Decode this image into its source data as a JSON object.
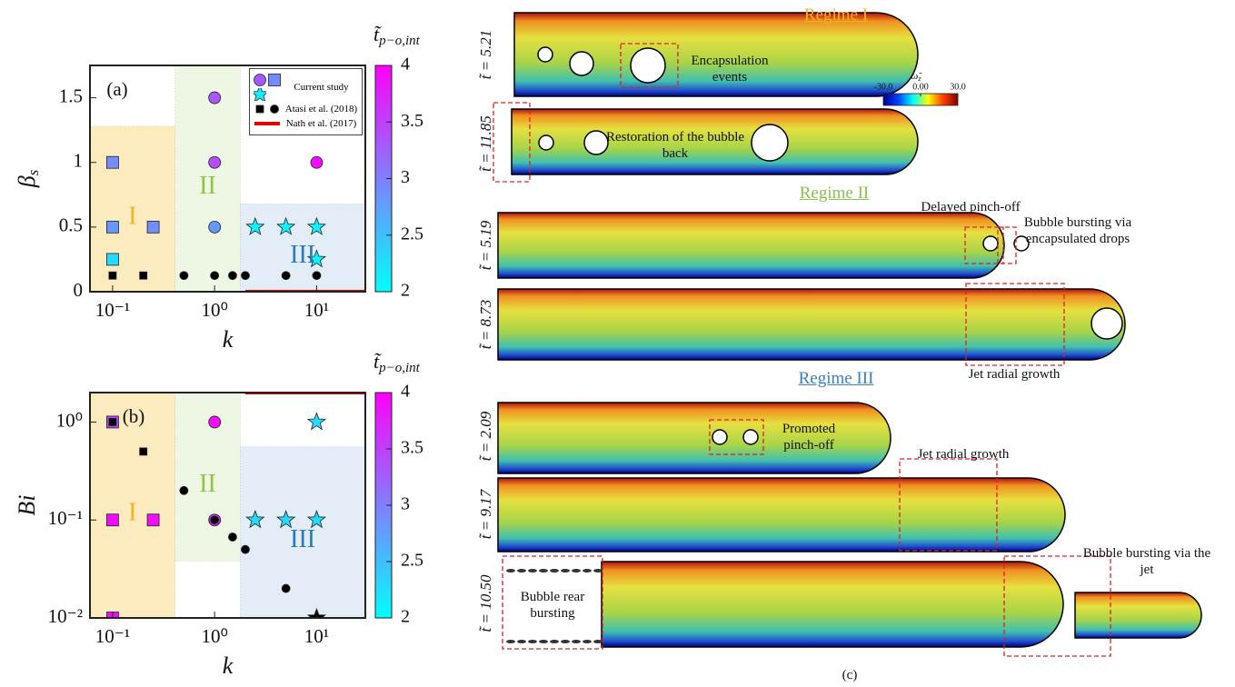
{
  "chart_data": [
    {
      "type": "scatter",
      "panel_label": "(a)",
      "xlabel": "k",
      "ylabel": "β",
      "ylabel_sub": "s",
      "xscale": "log",
      "yscale": "linear",
      "xlim": [
        0.06,
        30
      ],
      "ylim": [
        0,
        1.75
      ],
      "xticks": [
        {
          "value": 0.1,
          "label": "10⁻¹"
        },
        {
          "value": 1,
          "label": "10⁰"
        },
        {
          "value": 10,
          "label": "10¹"
        }
      ],
      "yticks": [
        0,
        0.5,
        1,
        1.5
      ],
      "regions": [
        {
          "label": "I",
          "xlim": [
            0.06,
            0.41
          ],
          "ylim": [
            0,
            1.28
          ],
          "color": "#fdebc0",
          "label_color": "#f2b320"
        },
        {
          "label": "II",
          "xlim": [
            0.41,
            1.78
          ],
          "ylim": [
            0,
            1.75
          ],
          "color": "#eef6e4",
          "label_color": "#8cc63f"
        },
        {
          "label": "III",
          "xlim": [
            1.78,
            30
          ],
          "ylim": [
            0,
            0.68
          ],
          "color": "#e3edf8",
          "label_color": "#2a7ab8"
        }
      ],
      "colorbar": {
        "symbol": "t̃",
        "subscript": "p−o,int",
        "lim": [
          2,
          4
        ],
        "ticks": [
          2,
          2.5,
          3,
          3.5,
          4
        ],
        "colors": [
          "#00ffff",
          "#ff00ff"
        ]
      },
      "legend": "upper right",
      "series": [
        {
          "name": "Current study",
          "marker": "circle",
          "x": [
            1,
            1,
            1,
            10
          ],
          "values": [
            1.5,
            1,
            0.5,
            1
          ],
          "t": [
            3.3,
            3.4,
            2.8,
            3.9
          ]
        },
        {
          "marker": "square",
          "x": [
            0.1,
            0.1,
            0.1,
            0.25
          ],
          "values": [
            1,
            0.5,
            0.25,
            0.5
          ],
          "t": [
            2.9,
            2.8,
            2.3,
            2.9
          ]
        },
        {
          "marker": "star",
          "x": [
            2.5,
            5,
            10,
            10
          ],
          "values": [
            0.5,
            0.5,
            0.5,
            0.25
          ],
          "t": [
            2.1,
            2.1,
            2.1,
            2.1
          ]
        },
        {
          "name": "Atasi et al. (2018)",
          "marker": "small-square",
          "color": "#000000",
          "x": [
            0.1,
            0.2
          ],
          "values": [
            0.125,
            0.125
          ]
        },
        {
          "marker": "small-circle",
          "color": "#000000",
          "x": [
            0.5,
            1,
            1.5,
            2,
            5,
            10
          ],
          "values": [
            0.125,
            0.125,
            0.125,
            0.125,
            0.125,
            0.125
          ]
        },
        {
          "name": "Nath et al. (2017)",
          "marker": "line",
          "color": "#e00000",
          "x": [
            2,
            30
          ],
          "values": [
            0,
            0
          ]
        }
      ]
    },
    {
      "type": "scatter",
      "panel_label": "(b)",
      "xlabel": "k",
      "ylabel": "Bi",
      "xscale": "log",
      "yscale": "log",
      "xlim": [
        0.06,
        30
      ],
      "ylim": [
        0.01,
        2
      ],
      "xticks": [
        {
          "value": 0.1,
          "label": "10⁻¹"
        },
        {
          "value": 1,
          "label": "10⁰"
        },
        {
          "value": 10,
          "label": "10¹"
        }
      ],
      "yticks": [
        {
          "value": 0.01,
          "label": "10⁻²"
        },
        {
          "value": 0.1,
          "label": "10⁻¹"
        },
        {
          "value": 1,
          "label": "10⁰"
        }
      ],
      "regions": [
        {
          "label": "I",
          "xlim": [
            0.06,
            0.41
          ],
          "ylim": [
            0.01,
            2
          ],
          "color": "#fdebc0",
          "label_color": "#f2b320"
        },
        {
          "label": "II",
          "xlim": [
            0.41,
            1.78
          ],
          "ylim": [
            0.038,
            2
          ],
          "color": "#eef6e4",
          "label_color": "#8cc63f"
        },
        {
          "label": "III",
          "xlim": [
            1.78,
            30
          ],
          "ylim": [
            0.01,
            0.56
          ],
          "color": "#e3edf8",
          "label_color": "#2a7ab8"
        }
      ],
      "colorbar": {
        "symbol": "t̃",
        "subscript": "p−o,int",
        "lim": [
          2,
          4
        ],
        "ticks": [
          2,
          2.5,
          3,
          3.5,
          4
        ],
        "colors": [
          "#00ffff",
          "#ff00ff"
        ]
      },
      "series": [
        {
          "marker": "circle",
          "x": [
            1,
            1
          ],
          "values": [
            1,
            0.1
          ],
          "t": [
            3.9,
            3.8
          ]
        },
        {
          "marker": "square",
          "x": [
            0.1,
            0.1,
            0.1,
            0.25
          ],
          "values": [
            1,
            0.1,
            0.01,
            0.1
          ],
          "t": [
            3.5,
            3.9,
            3.9,
            3.9
          ]
        },
        {
          "marker": "star",
          "x": [
            10,
            2.5,
            5,
            10
          ],
          "values": [
            1,
            0.1,
            0.1,
            0.1
          ],
          "t": [
            2.3,
            2.3,
            2.3,
            2.3
          ]
        },
        {
          "marker": "small-square",
          "color": "#000000",
          "x": [
            0.1,
            0.2
          ],
          "values": [
            1,
            0.5
          ]
        },
        {
          "marker": "small-circle",
          "color": "#000000",
          "x": [
            0.5,
            1,
            1.5,
            2,
            5
          ],
          "values": [
            0.2,
            0.1,
            0.067,
            0.05,
            0.02
          ]
        },
        {
          "marker": "star",
          "color": "#000000",
          "x": [
            10
          ],
          "values": [
            0.01
          ]
        },
        {
          "marker": "line",
          "color": "#e00000",
          "x": [
            2,
            30
          ],
          "values": [
            2,
            2
          ]
        }
      ]
    }
  ],
  "panel_c": {
    "label": "(c)",
    "regimes": [
      {
        "title": "Regime I",
        "color": "#f5b21f"
      },
      {
        "title": "Regime II",
        "color": "#8cc050"
      },
      {
        "title": "Regime III",
        "color": "#3a80c0"
      }
    ],
    "times": [
      "t̃ = 5.21",
      "t̃ = 11.85",
      "t̃ = 5.19",
      "t̃ = 8.73",
      "t̃ = 2.09",
      "t̃ = 9.17",
      "t̃ = 10.50"
    ],
    "annotations": [
      "Encapsulation events",
      "Restoration of the bubble back",
      "Delayed pinch-off",
      "Bubble bursting via encapsulated drops",
      "Jet radial growth",
      "Promoted pinch-off",
      "Jet radial growth",
      "Bubble rear bursting",
      "Bubble bursting via the jet"
    ],
    "colorbar": {
      "symbol": "ω̃",
      "subscript": "z",
      "lim": [
        -30,
        30
      ],
      "ticks": [
        {
          "value": -30,
          "label": "-30.0"
        },
        {
          "value": 0,
          "label": "0.00"
        },
        {
          "value": 30,
          "label": "30.0"
        }
      ]
    }
  }
}
